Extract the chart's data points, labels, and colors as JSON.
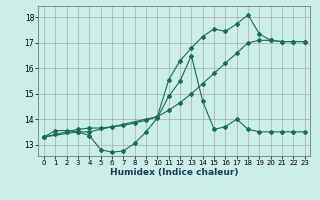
{
  "xlabel": "Humidex (Indice chaleur)",
  "bg_color": "#cceee8",
  "grid_color": "#aaaaaa",
  "line_color": "#1a6b5a",
  "xlim": [
    -0.5,
    23.5
  ],
  "ylim": [
    12.55,
    18.45
  ],
  "xticks": [
    0,
    1,
    2,
    3,
    4,
    5,
    6,
    7,
    8,
    9,
    10,
    11,
    12,
    13,
    14,
    15,
    16,
    17,
    18,
    19,
    20,
    21,
    22,
    23
  ],
  "yticks": [
    13,
    14,
    15,
    16,
    17,
    18
  ],
  "line1_x": [
    0,
    1,
    2,
    3,
    4,
    5,
    6,
    7,
    8,
    9,
    10,
    11,
    12,
    13,
    14,
    15,
    16,
    17,
    18,
    19,
    20,
    21,
    22,
    23
  ],
  "line1_y": [
    13.3,
    13.55,
    13.55,
    13.5,
    13.35,
    12.8,
    12.7,
    12.75,
    13.05,
    13.5,
    14.05,
    14.9,
    15.5,
    16.5,
    14.7,
    13.6,
    13.7,
    14.0,
    13.6,
    13.5,
    13.5,
    13.5,
    13.5,
    13.5
  ],
  "line2_x": [
    0,
    1,
    2,
    3,
    4,
    5,
    6,
    7,
    8,
    9,
    10,
    11,
    12,
    13,
    14,
    15,
    16,
    17,
    18,
    19,
    20,
    21,
    22,
    23
  ],
  "line2_y": [
    13.3,
    13.4,
    13.5,
    13.6,
    13.65,
    13.65,
    13.7,
    13.75,
    13.85,
    13.95,
    14.1,
    14.35,
    14.65,
    15.0,
    15.4,
    15.8,
    16.2,
    16.6,
    17.0,
    17.1,
    17.1,
    17.05,
    17.05,
    17.05
  ],
  "line3_x": [
    0,
    3,
    4,
    10,
    11,
    12,
    13,
    14,
    15,
    16,
    17,
    18,
    19,
    20,
    21,
    22,
    23
  ],
  "line3_y": [
    13.3,
    13.5,
    13.5,
    14.1,
    15.55,
    16.3,
    16.8,
    17.25,
    17.55,
    17.45,
    17.75,
    18.1,
    17.35,
    17.1,
    17.05,
    17.05,
    17.05
  ]
}
